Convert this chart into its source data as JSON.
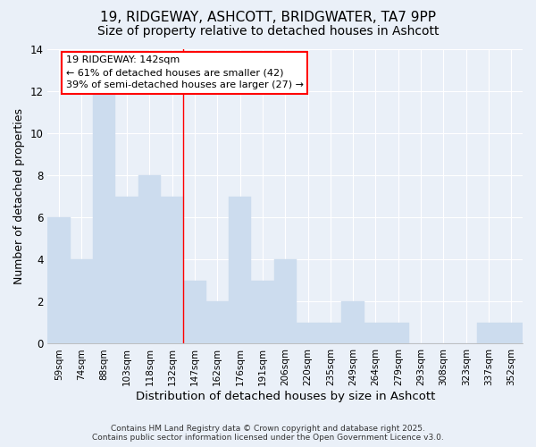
{
  "title1": "19, RIDGEWAY, ASHCOTT, BRIDGWATER, TA7 9PP",
  "title2": "Size of property relative to detached houses in Ashcott",
  "xlabel": "Distribution of detached houses by size in Ashcott",
  "ylabel": "Number of detached properties",
  "categories": [
    "59sqm",
    "74sqm",
    "88sqm",
    "103sqm",
    "118sqm",
    "132sqm",
    "147sqm",
    "162sqm",
    "176sqm",
    "191sqm",
    "206sqm",
    "220sqm",
    "235sqm",
    "249sqm",
    "264sqm",
    "279sqm",
    "293sqm",
    "308sqm",
    "323sqm",
    "337sqm",
    "352sqm"
  ],
  "values": [
    6,
    4,
    12,
    7,
    8,
    7,
    3,
    2,
    7,
    3,
    4,
    1,
    1,
    2,
    1,
    1,
    0,
    0,
    0,
    1,
    1
  ],
  "bar_color": "#ccdcee",
  "bar_edge_color": "#ccdcee",
  "vline_color": "red",
  "annotation_text": "19 RIDGEWAY: 142sqm\n← 61% of detached houses are smaller (42)\n39% of semi-detached houses are larger (27) →",
  "annotation_box_color": "white",
  "annotation_box_edge": "red",
  "ylim": [
    0,
    14
  ],
  "yticks": [
    0,
    2,
    4,
    6,
    8,
    10,
    12,
    14
  ],
  "background_color": "#eaf0f8",
  "footer_text": "Contains HM Land Registry data © Crown copyright and database right 2025.\nContains public sector information licensed under the Open Government Licence v3.0.",
  "title_fontsize": 11,
  "subtitle_fontsize": 10,
  "xlabel_fontsize": 9.5,
  "ylabel_fontsize": 9
}
